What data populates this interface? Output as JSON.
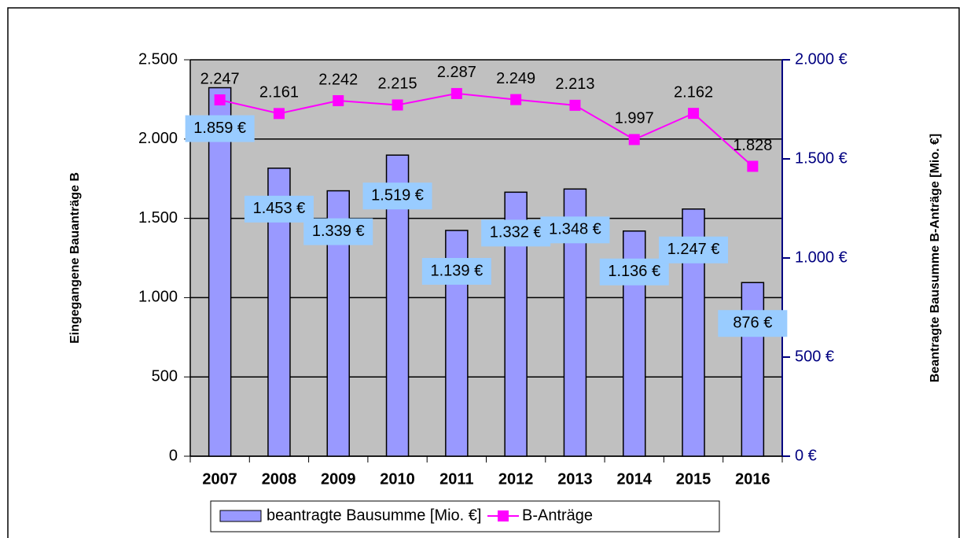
{
  "chart_data": {
    "type": "bar-line",
    "categories": [
      "2007",
      "2008",
      "2009",
      "2010",
      "2011",
      "2012",
      "2013",
      "2014",
      "2015",
      "2016"
    ],
    "series": [
      {
        "name": "beantragte Bausumme [Mio. €]",
        "type": "bar",
        "axis": "y2",
        "color": "#9999ff",
        "values": [
          1859,
          1453,
          1339,
          1519,
          1139,
          1332,
          1348,
          1136,
          1247,
          876
        ],
        "value_labels": [
          "1.859 €",
          "1.453 €",
          "1.339 €",
          "1.519 €",
          "1.139 €",
          "1.332 €",
          "1.348 €",
          "1.136 €",
          "1.247 €",
          "876 €"
        ]
      },
      {
        "name": "B-Anträge",
        "type": "line",
        "axis": "y",
        "color": "#ff00ff",
        "values": [
          2247,
          2161,
          2242,
          2215,
          2287,
          2249,
          2213,
          1997,
          2162,
          1828
        ],
        "value_labels": [
          "2.247",
          "2.161",
          "2.242",
          "2.215",
          "2.287",
          "2.249",
          "2.213",
          "1.997",
          "2.162",
          "1.828"
        ]
      }
    ],
    "ylabel": "Eingegangene Bauanträge B",
    "y2label": "Beantragte Bausumme B-Anträge  [Mio. €]",
    "ylim": [
      0,
      2500
    ],
    "yticks": [
      0,
      500,
      {
        "value": 1000,
        "label": "1.000"
      },
      {
        "value": 1500,
        "label": "1.500"
      },
      {
        "value": 2000,
        "label": "2.000"
      },
      {
        "value": 2500,
        "label": "2.500"
      }
    ],
    "y2lim": [
      0,
      2000
    ],
    "y2ticks": [
      {
        "value": 0,
        "label": "0 €"
      },
      {
        "value": 500,
        "label": "500 €"
      },
      {
        "value": 1000,
        "label": "1.000 €"
      },
      {
        "value": 1500,
        "label": "1.500 €"
      },
      {
        "value": 2000,
        "label": "2.000 €"
      }
    ],
    "grid": true,
    "legend": "bottom"
  }
}
